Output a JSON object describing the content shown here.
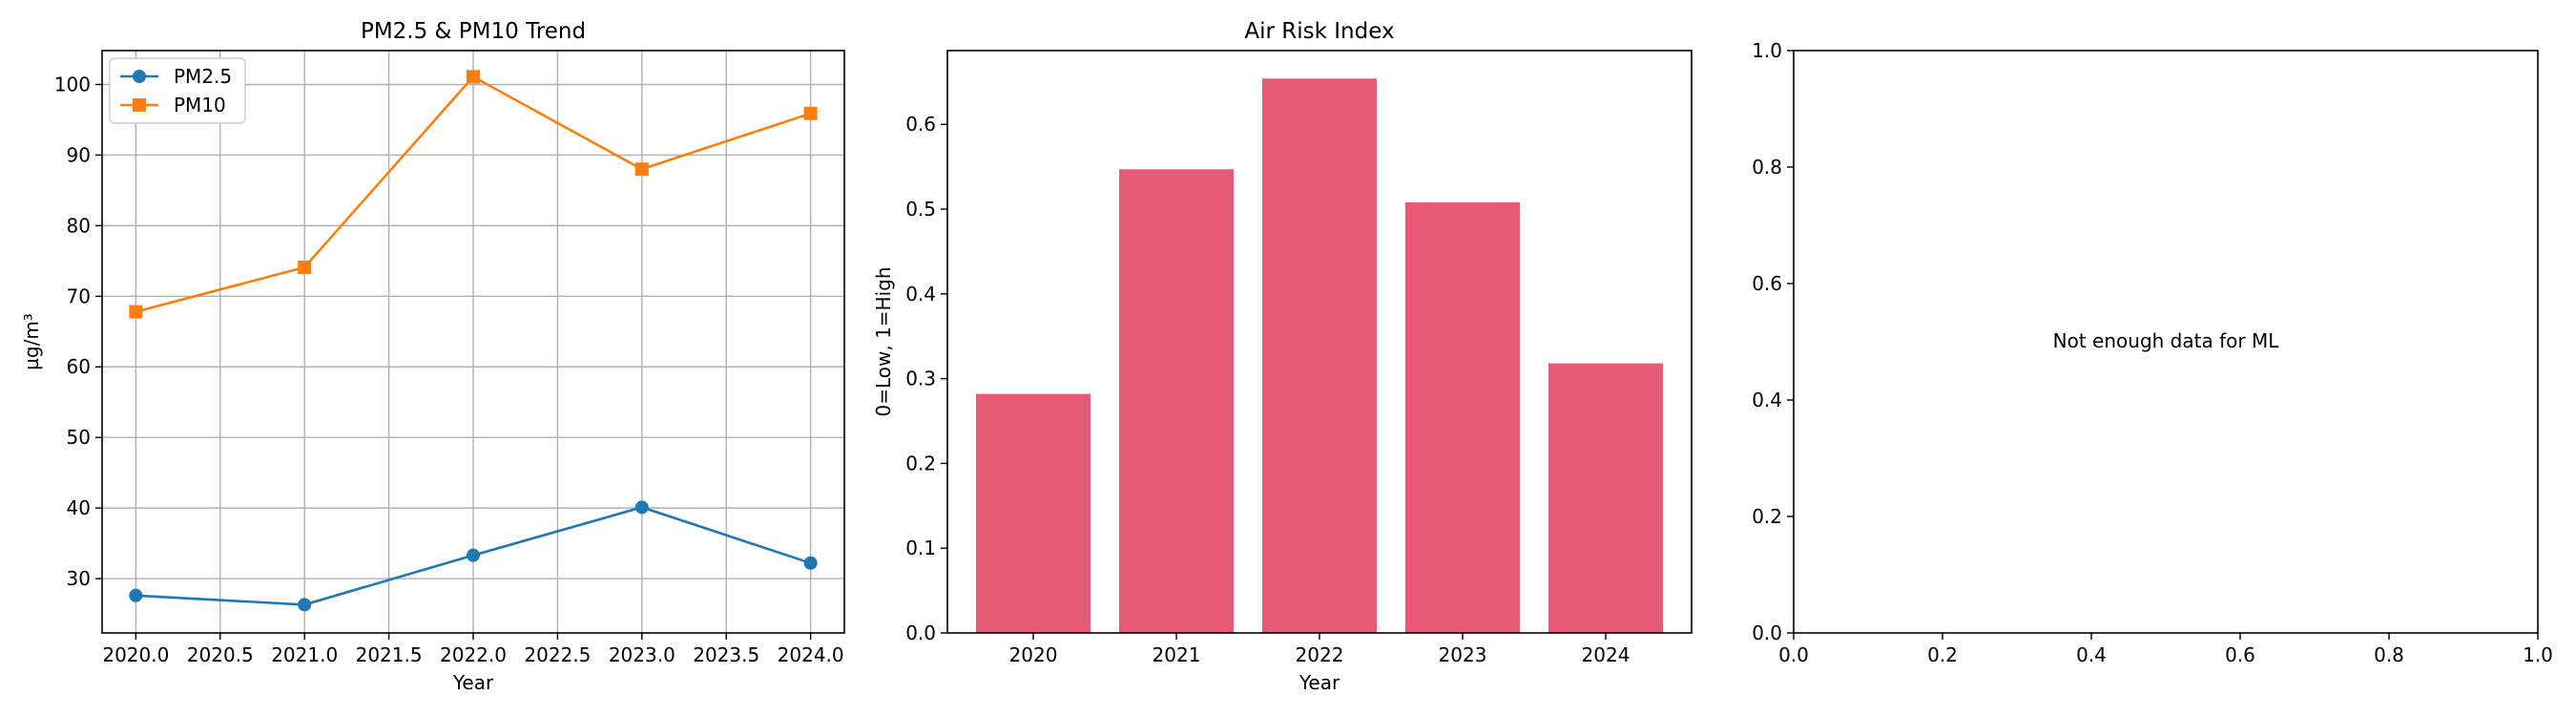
{
  "chart_data": [
    {
      "type": "line",
      "title": "PM2.5 & PM10 Trend",
      "xlabel": "Year",
      "ylabel": "µg/m³",
      "x": [
        2020,
        2021,
        2022,
        2023,
        2024
      ],
      "xticks": [
        "2020.0",
        "2020.5",
        "2021.0",
        "2021.5",
        "2022.0",
        "2022.5",
        "2023.0",
        "2023.5",
        "2024.0"
      ],
      "yticks": [
        "30",
        "40",
        "50",
        "60",
        "70",
        "80",
        "90",
        "100"
      ],
      "xlim": [
        2019.8,
        2024.2
      ],
      "ylim": [
        22.3,
        104.8
      ],
      "grid": true,
      "legend": "top-left",
      "series": [
        {
          "name": "PM2.5",
          "values": [
            27.6,
            26.3,
            33.3,
            40.1,
            32.2
          ],
          "color": "#1f77b4",
          "marker": "circle"
        },
        {
          "name": "PM10",
          "values": [
            67.8,
            74.1,
            101.1,
            88.0,
            95.9
          ],
          "color": "#ff7f0e",
          "marker": "square"
        }
      ]
    },
    {
      "type": "bar",
      "title": "Air Risk Index",
      "xlabel": "Year",
      "ylabel": "0=Low, 1=High",
      "categories": [
        "2020",
        "2021",
        "2022",
        "2023",
        "2024"
      ],
      "values": [
        0.282,
        0.547,
        0.654,
        0.508,
        0.318
      ],
      "yticks": [
        "0.0",
        "0.1",
        "0.2",
        "0.3",
        "0.4",
        "0.5",
        "0.6"
      ],
      "ylim": [
        0,
        0.687
      ],
      "grid": false,
      "color": "#e75a75"
    },
    {
      "type": "scatter",
      "title": "",
      "annotation": "Not enough data for ML",
      "xticks": [
        "0.0",
        "0.2",
        "0.4",
        "0.6",
        "0.8",
        "1.0"
      ],
      "yticks": [
        "0.0",
        "0.2",
        "0.4",
        "0.6",
        "0.8",
        "1.0"
      ],
      "xlim": [
        0,
        1
      ],
      "ylim": [
        0,
        1
      ],
      "grid": false
    }
  ]
}
